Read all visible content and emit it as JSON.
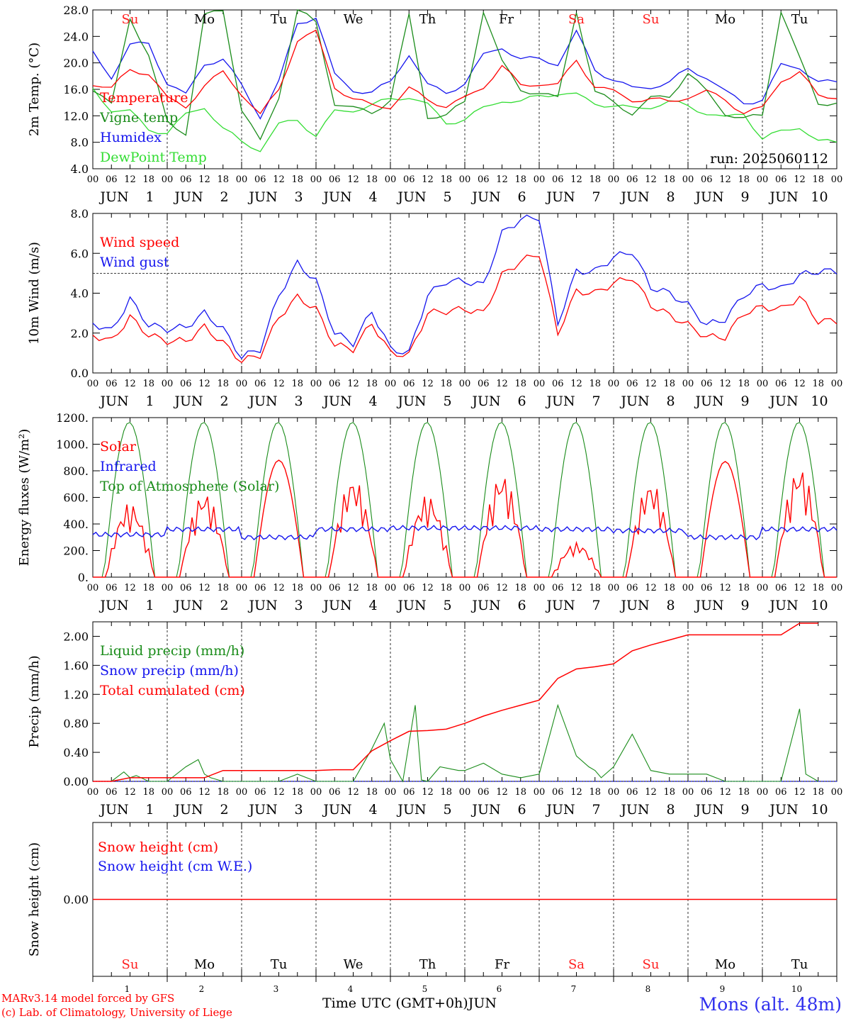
{
  "colors": {
    "red": "#ff0000",
    "dkgreen": "#1a8c1a",
    "blue": "#1515ee",
    "ltgreen": "#33dd33",
    "weekend": "#ff2020",
    "black": "#000000"
  },
  "days": [
    {
      "dow": "Su",
      "date": "1",
      "weekend": true
    },
    {
      "dow": "Mo",
      "date": "2",
      "weekend": false
    },
    {
      "dow": "Tu",
      "date": "3",
      "weekend": false
    },
    {
      "dow": "We",
      "date": "4",
      "weekend": false
    },
    {
      "dow": "Th",
      "date": "5",
      "weekend": false
    },
    {
      "dow": "Fr",
      "date": "6",
      "weekend": false
    },
    {
      "dow": "Sa",
      "date": "7",
      "weekend": true
    },
    {
      "dow": "Su",
      "date": "8",
      "weekend": true
    },
    {
      "dow": "Mo",
      "date": "9",
      "weekend": false
    },
    {
      "dow": "Tu",
      "date": "10",
      "weekend": false
    }
  ],
  "month_label": "JUN",
  "hour_ticks": [
    "00",
    "06",
    "12",
    "18"
  ],
  "run_label": "run: 2025060112",
  "x_axis_title": "Time UTC (GMT+0h)",
  "x_axis_month": "JUN",
  "footer": {
    "model": "MARv3.14 model forced by GFS",
    "credit": "(c) Lab. of Climatology, University of Liege",
    "station": "Mons (alt. 48m)"
  },
  "chart_data": [
    {
      "type": "line",
      "ylabel": "2m Temp. (°C)",
      "ylim": [
        4,
        28
      ],
      "yticks": [
        4,
        8,
        12,
        16,
        20,
        24,
        28
      ],
      "ytick_labels": [
        "4.0",
        "8.0",
        "12.0",
        "16.0",
        "20.0",
        "24.0",
        "28.0"
      ],
      "x_unit": "hours since 2025-06-01 00 UTC",
      "x_step": 6,
      "series": [
        {
          "name": "Temperature",
          "color": "#ff0000",
          "x": [
            0,
            6,
            12,
            18,
            24,
            30,
            36,
            42,
            48,
            54,
            60,
            66,
            72,
            78,
            84,
            90,
            96,
            102,
            108,
            114,
            120,
            126,
            132,
            138,
            144,
            150,
            156,
            162,
            168,
            174,
            180,
            186,
            192,
            198,
            204,
            210,
            216,
            222,
            228,
            234
          ],
          "values": [
            17.0,
            16.0,
            19.0,
            18.5,
            14.5,
            13.5,
            16.5,
            18.5,
            15.5,
            12.0,
            16.0,
            23.5,
            24.5,
            16.5,
            14.5,
            13.5,
            13.5,
            16.0,
            14.5,
            13.5,
            14.5,
            16.5,
            19.5,
            16.5,
            17.0,
            16.5,
            20.5,
            16.5,
            15.5,
            14.5,
            14.5,
            14.0,
            15.0,
            15.5,
            14.5,
            12.5,
            13.0,
            17.5,
            18.5,
            15.0
          ]
        },
        {
          "name": "Vigne temp",
          "color": "#1a8c1a",
          "x": [
            0,
            6,
            12,
            18,
            24,
            30,
            36,
            42,
            48,
            54,
            60,
            66,
            72,
            78,
            84,
            90,
            96,
            102,
            108,
            114,
            120,
            126,
            132,
            138,
            144,
            150,
            156,
            162,
            168,
            174,
            180,
            186,
            192,
            198,
            204,
            210,
            216,
            222,
            228,
            234
          ],
          "values": [
            16.0,
            13.5,
            27.0,
            21.0,
            11.0,
            9.5,
            27.0,
            28.0,
            13.0,
            8.0,
            15.0,
            28.0,
            26.0,
            14.0,
            13.0,
            12.5,
            14.5,
            27.0,
            12.0,
            12.0,
            14.0,
            28.0,
            20.0,
            16.0,
            15.5,
            14.5,
            28.0,
            15.5,
            14.0,
            12.5,
            14.5,
            15.0,
            18.5,
            15.5,
            12.5,
            11.5,
            12.0,
            28.0,
            20.5,
            14.0
          ]
        },
        {
          "name": "Humidex",
          "color": "#1515ee",
          "x": [
            0,
            6,
            12,
            18,
            24,
            30,
            36,
            42,
            48,
            54,
            60,
            66,
            72,
            78,
            84,
            90,
            96,
            102,
            108,
            114,
            120,
            126,
            132,
            138,
            144,
            150,
            156,
            162,
            168,
            174,
            180,
            186,
            192,
            198,
            204,
            210,
            216,
            222,
            228,
            234
          ],
          "values": [
            21.5,
            18.0,
            22.5,
            23.0,
            17.0,
            15.0,
            20.0,
            20.5,
            16.5,
            12.0,
            17.0,
            26.0,
            27.0,
            18.0,
            16.0,
            15.5,
            17.0,
            21.5,
            16.5,
            15.5,
            17.0,
            21.0,
            22.5,
            20.5,
            20.5,
            20.0,
            24.5,
            19.0,
            17.5,
            16.0,
            16.5,
            17.0,
            19.0,
            18.0,
            15.5,
            14.0,
            14.5,
            19.5,
            19.5,
            17.0
          ]
        },
        {
          "name": "DewPoint Temp",
          "color": "#33dd33",
          "x": [
            0,
            6,
            12,
            18,
            24,
            30,
            36,
            42,
            48,
            54,
            60,
            66,
            72,
            78,
            84,
            90,
            96,
            102,
            108,
            114,
            120,
            126,
            132,
            138,
            144,
            150,
            156,
            162,
            168,
            174,
            180,
            186,
            192,
            198,
            204,
            210,
            216,
            222,
            228,
            234
          ],
          "values": [
            16.0,
            13.0,
            12.5,
            10.0,
            9.5,
            12.0,
            13.5,
            10.0,
            8.0,
            7.0,
            10.5,
            11.5,
            9.0,
            12.5,
            13.0,
            13.5,
            14.5,
            15.0,
            13.5,
            11.0,
            11.5,
            13.0,
            14.5,
            14.0,
            15.0,
            15.5,
            15.0,
            14.0,
            13.5,
            13.0,
            13.5,
            14.0,
            13.5,
            12.5,
            11.5,
            12.5,
            8.5,
            9.5,
            10.5,
            8.0
          ]
        }
      ]
    },
    {
      "type": "line",
      "ylabel": "10m Wind (m/s)",
      "ylim": [
        0,
        8
      ],
      "yticks": [
        0,
        2,
        4,
        6,
        8
      ],
      "ytick_labels": [
        "0.0",
        "2.0",
        "4.0",
        "6.0",
        "8.0"
      ],
      "reference_line": 5,
      "x_unit": "hours since 2025-06-01 00 UTC",
      "x_step": 6,
      "series": [
        {
          "name": "Wind speed",
          "color": "#ff0000",
          "x": [
            0,
            6,
            12,
            18,
            24,
            30,
            36,
            42,
            48,
            54,
            60,
            66,
            72,
            78,
            84,
            90,
            96,
            102,
            108,
            114,
            120,
            126,
            132,
            138,
            144,
            150,
            156,
            162,
            168,
            174,
            180,
            186,
            192,
            198,
            204,
            210,
            216,
            222,
            228,
            234
          ],
          "values": [
            1.9,
            1.6,
            2.8,
            1.9,
            1.6,
            1.6,
            2.3,
            1.5,
            0.6,
            0.9,
            2.8,
            3.8,
            3.2,
            1.4,
            1.2,
            2.5,
            1.0,
            0.9,
            3.0,
            3.1,
            3.2,
            3.0,
            4.9,
            5.6,
            6.0,
            2.0,
            4.1,
            4.0,
            4.5,
            4.8,
            3.4,
            2.9,
            2.4,
            1.8,
            1.8,
            3.0,
            3.3,
            3.2,
            3.8,
            2.6
          ]
        },
        {
          "name": "Wind gust",
          "color": "#1515ee",
          "x": [
            0,
            6,
            12,
            18,
            24,
            30,
            36,
            42,
            48,
            54,
            60,
            66,
            72,
            78,
            84,
            90,
            96,
            102,
            108,
            114,
            120,
            126,
            132,
            138,
            144,
            150,
            156,
            162,
            168,
            174,
            180,
            186,
            192,
            198,
            204,
            210,
            216,
            222,
            228,
            234
          ],
          "values": [
            2.5,
            2.1,
            3.7,
            2.4,
            2.2,
            2.3,
            3.0,
            2.2,
            0.8,
            1.2,
            3.9,
            5.5,
            4.6,
            2.0,
            1.5,
            3.1,
            1.2,
            1.0,
            3.9,
            4.6,
            4.6,
            4.4,
            7.0,
            7.7,
            7.8,
            2.5,
            5.1,
            5.1,
            5.8,
            6.1,
            4.3,
            4.0,
            3.4,
            2.4,
            2.7,
            3.9,
            4.4,
            4.2,
            4.9,
            5.1
          ]
        }
      ]
    },
    {
      "type": "line",
      "ylabel": "Energy fluxes (W/m²)",
      "ylim": [
        0,
        1200
      ],
      "yticks": [
        0,
        200,
        400,
        600,
        800,
        1000,
        1200
      ],
      "ytick_labels": [
        "0.",
        "200.",
        "400.",
        "600.",
        "800.",
        "1000.",
        "1200."
      ],
      "x_unit": "hours since 2025-06-01 00 UTC",
      "series": [
        {
          "name": "Solar",
          "color": "#ff0000",
          "peaks": [
            560,
            640,
            880,
            750,
            620,
            780,
            260,
            720,
            870,
            830
          ]
        },
        {
          "name": "Infrared",
          "color": "#1515ee",
          "values_daily": [
            320,
            360,
            300,
            360,
            370,
            370,
            360,
            350,
            300,
            360
          ]
        },
        {
          "name": "Top of Atmosphere (Solar)",
          "color": "#1a8c1a",
          "peak": 1165
        }
      ]
    },
    {
      "type": "line",
      "ylabel": "Precip (mm/h)",
      "ylim": [
        0,
        2.2
      ],
      "yticks": [
        0,
        0.4,
        0.8,
        1.2,
        1.6,
        2.0
      ],
      "ytick_labels": [
        "0.00",
        "0.40",
        "0.80",
        "1.20",
        "1.60",
        "2.00"
      ],
      "x_unit": "hours since 2025-06-01 00 UTC",
      "series": [
        {
          "name": "Liquid precip (mm/h)",
          "color": "#1a8c1a",
          "x": [
            0,
            6,
            10,
            12,
            14,
            18,
            24,
            30,
            34,
            36,
            38,
            42,
            48,
            60,
            66,
            72,
            78,
            84,
            90,
            94,
            96,
            100,
            104,
            106,
            108,
            112,
            118,
            120,
            126,
            132,
            138,
            144,
            150,
            156,
            160,
            162,
            164,
            168,
            174,
            180,
            186,
            192,
            198,
            204,
            210,
            216,
            222,
            228,
            230,
            234
          ],
          "values": [
            0,
            0,
            0.13,
            0.05,
            0.08,
            0,
            0,
            0.2,
            0.3,
            0.1,
            0.05,
            0,
            0,
            0,
            0.1,
            0,
            0,
            0,
            0.45,
            0.8,
            0.3,
            0,
            1.05,
            0.02,
            0,
            0.2,
            0.15,
            0.15,
            0.25,
            0.1,
            0.05,
            0.1,
            1.05,
            0.35,
            0.2,
            0.15,
            0.05,
            0.2,
            0.65,
            0.15,
            0.1,
            0.1,
            0.1,
            0,
            0,
            0,
            0,
            1.0,
            0.1,
            0
          ]
        },
        {
          "name": "Snow precip (mm/h)",
          "color": "#1515ee",
          "values": [
            0
          ]
        },
        {
          "name": "Total cumulated (cm)",
          "color": "#ff0000",
          "x": [
            0,
            6,
            12,
            18,
            24,
            36,
            42,
            48,
            60,
            72,
            78,
            84,
            90,
            96,
            102,
            108,
            114,
            120,
            126,
            132,
            138,
            144,
            150,
            156,
            162,
            168,
            174,
            180,
            186,
            192,
            198,
            204,
            210,
            216,
            222,
            228,
            234
          ],
          "values": [
            0,
            0,
            0.05,
            0.05,
            0.05,
            0.05,
            0.15,
            0.15,
            0.15,
            0.15,
            0.16,
            0.16,
            0.42,
            0.56,
            0.69,
            0.7,
            0.72,
            0.8,
            0.9,
            0.98,
            1.05,
            1.12,
            1.42,
            1.55,
            1.58,
            1.62,
            1.8,
            1.88,
            1.95,
            2.02,
            2.02,
            2.02,
            2.02,
            2.02,
            2.02,
            2.18,
            2.18
          ]
        }
      ]
    },
    {
      "type": "line",
      "ylabel": "Snow height (cm)",
      "ylim": [
        -1,
        1
      ],
      "yticks": [
        0
      ],
      "ytick_labels": [
        "0.00"
      ],
      "series": [
        {
          "name": "Snow height (cm)",
          "color": "#ff0000",
          "values": [
            0
          ]
        },
        {
          "name": "Snow height (cm W.E.)",
          "color": "#1515ee",
          "values": [
            0
          ]
        }
      ]
    }
  ]
}
